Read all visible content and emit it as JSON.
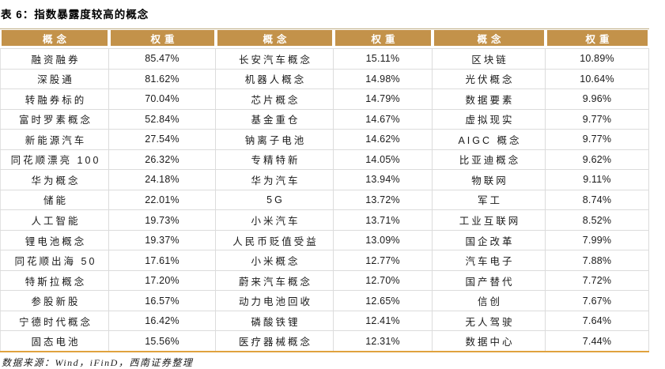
{
  "page": {
    "title": "表 6：指数暴露度较高的概念",
    "source": "数据来源：Wind，iFinD，西南证券整理"
  },
  "colors": {
    "header_bg": "#C3924A",
    "header_text": "#FFFFFF",
    "grid_line": "#DCDCDC",
    "bottom_rule": "#E0A23E"
  },
  "table": {
    "groups": [
      {
        "concept_header": "概念",
        "weight_header": "权重",
        "rows": [
          {
            "concept": "融资融券",
            "weight": "85.47%"
          },
          {
            "concept": "深股通",
            "weight": "81.62%"
          },
          {
            "concept": "转融券标的",
            "weight": "70.04%"
          },
          {
            "concept": "富时罗素概念",
            "weight": "52.84%"
          },
          {
            "concept": "新能源汽车",
            "weight": "27.54%"
          },
          {
            "concept": "同花顺漂亮 100",
            "weight": "26.32%"
          },
          {
            "concept": "华为概念",
            "weight": "24.18%"
          },
          {
            "concept": "储能",
            "weight": "22.01%"
          },
          {
            "concept": "人工智能",
            "weight": "19.73%"
          },
          {
            "concept": "锂电池概念",
            "weight": "19.37%"
          },
          {
            "concept": "同花顺出海 50",
            "weight": "17.61%"
          },
          {
            "concept": "特斯拉概念",
            "weight": "17.20%"
          },
          {
            "concept": "参股新股",
            "weight": "16.57%"
          },
          {
            "concept": "宁德时代概念",
            "weight": "16.42%"
          },
          {
            "concept": "固态电池",
            "weight": "15.56%"
          }
        ]
      },
      {
        "concept_header": "概念",
        "weight_header": "权重",
        "rows": [
          {
            "concept": "长安汽车概念",
            "weight": "15.11%"
          },
          {
            "concept": "机器人概念",
            "weight": "14.98%"
          },
          {
            "concept": "芯片概念",
            "weight": "14.79%"
          },
          {
            "concept": "基金重仓",
            "weight": "14.67%"
          },
          {
            "concept": "钠离子电池",
            "weight": "14.62%"
          },
          {
            "concept": "专精特新",
            "weight": "14.05%"
          },
          {
            "concept": "华为汽车",
            "weight": "13.94%"
          },
          {
            "concept": "5G",
            "weight": "13.72%"
          },
          {
            "concept": "小米汽车",
            "weight": "13.71%"
          },
          {
            "concept": "人民币贬值受益",
            "weight": "13.09%"
          },
          {
            "concept": "小米概念",
            "weight": "12.77%"
          },
          {
            "concept": "蔚来汽车概念",
            "weight": "12.70%"
          },
          {
            "concept": "动力电池回收",
            "weight": "12.65%"
          },
          {
            "concept": "磷酸铁锂",
            "weight": "12.41%"
          },
          {
            "concept": "医疗器械概念",
            "weight": "12.31%"
          }
        ]
      },
      {
        "concept_header": "概念",
        "weight_header": "权重",
        "rows": [
          {
            "concept": "区块链",
            "weight": "10.89%"
          },
          {
            "concept": "光伏概念",
            "weight": "10.64%"
          },
          {
            "concept": "数据要素",
            "weight": "9.96%"
          },
          {
            "concept": "虚拟现实",
            "weight": "9.77%"
          },
          {
            "concept": "AIGC 概念",
            "weight": "9.77%"
          },
          {
            "concept": "比亚迪概念",
            "weight": "9.62%"
          },
          {
            "concept": "物联网",
            "weight": "9.11%"
          },
          {
            "concept": "军工",
            "weight": "8.74%"
          },
          {
            "concept": "工业互联网",
            "weight": "8.52%"
          },
          {
            "concept": "国企改革",
            "weight": "7.99%"
          },
          {
            "concept": "汽车电子",
            "weight": "7.88%"
          },
          {
            "concept": "国产替代",
            "weight": "7.72%"
          },
          {
            "concept": "信创",
            "weight": "7.67%"
          },
          {
            "concept": "无人驾驶",
            "weight": "7.64%"
          },
          {
            "concept": "数据中心",
            "weight": "7.44%"
          }
        ]
      }
    ]
  }
}
